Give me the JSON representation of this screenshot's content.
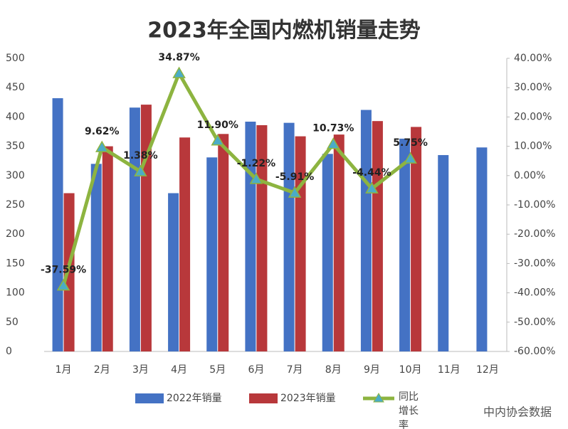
{
  "chart_data": {
    "type": "bar_line",
    "title": "2023年全国内燃机销量走势",
    "categories": [
      "1月",
      "2月",
      "3月",
      "4月",
      "5月",
      "6月",
      "7月",
      "8月",
      "9月",
      "10月",
      "11月",
      "12月"
    ],
    "series": [
      {
        "name": "2022年销量",
        "type": "bar",
        "color": "#4472c4",
        "values": [
          432,
          320,
          416,
          270,
          331,
          392,
          390,
          337,
          412,
          363,
          335,
          348
        ]
      },
      {
        "name": "2023年销量",
        "type": "bar",
        "color": "#b8383b",
        "values": [
          270,
          350,
          421,
          365,
          371,
          386,
          367,
          370,
          393,
          383,
          null,
          null
        ]
      },
      {
        "name": "同比增长率",
        "type": "line",
        "axis": "y2",
        "color": "#8db440",
        "marker_color": "#4bacc6",
        "values": [
          -37.59,
          9.62,
          1.38,
          34.87,
          11.9,
          -1.22,
          -5.91,
          10.73,
          -4.44,
          5.75,
          null,
          null
        ],
        "value_labels": [
          "-37.59%",
          "9.62%",
          "1.38%",
          "34.87%",
          "11.90%",
          "-1.22%",
          "-5.91%",
          "10.73%",
          "-4.44%",
          "5.75%",
          null,
          null
        ]
      }
    ],
    "ylim": [
      0,
      500
    ],
    "yticks": [
      0,
      50,
      100,
      150,
      200,
      250,
      300,
      350,
      400,
      450,
      500
    ],
    "y2lim": [
      -60,
      40
    ],
    "y2ticks": [
      {
        "value": -60,
        "label": "-60.00%"
      },
      {
        "value": -50,
        "label": "-50.00%"
      },
      {
        "value": -40,
        "label": "-40.00%"
      },
      {
        "value": -30,
        "label": "-30.00%"
      },
      {
        "value": -20,
        "label": "-20.00%"
      },
      {
        "value": -10,
        "label": "-10.00%"
      },
      {
        "value": 0,
        "label": "0.00%"
      },
      {
        "value": 10,
        "label": "10.00%"
      },
      {
        "value": 20,
        "label": "20.00%"
      },
      {
        "value": 30,
        "label": "30.00%"
      },
      {
        "value": 40,
        "label": "40.00%"
      }
    ],
    "grid": false,
    "legend": "bottom",
    "watermark": "中内协会数据"
  }
}
